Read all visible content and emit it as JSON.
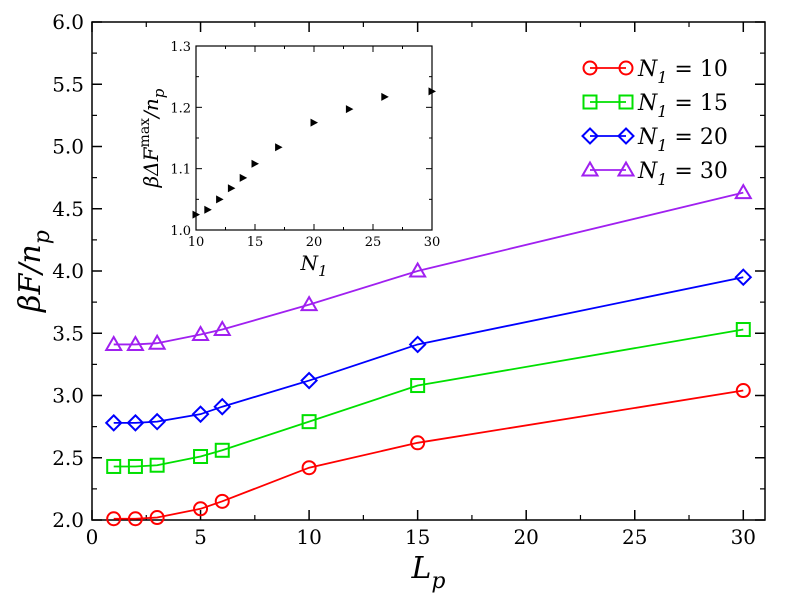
{
  "chart_data": [
    {
      "type": "line",
      "name": "main",
      "xlabel": {
        "base": "L",
        "sub": "p"
      },
      "ylabel": {
        "pre": "βF/n",
        "sub": "p"
      },
      "xlim": [
        0,
        31
      ],
      "ylim": [
        2.0,
        6.0
      ],
      "xticks": [
        0,
        5,
        10,
        15,
        20,
        25,
        30
      ],
      "xtick_labels": [
        "0",
        "5",
        "10",
        "15",
        "20",
        "25",
        "30"
      ],
      "yticks": [
        2.0,
        2.5,
        3.0,
        3.5,
        4.0,
        4.5,
        5.0,
        5.5,
        6.0
      ],
      "ytick_labels": [
        "2.0",
        "2.5",
        "3.0",
        "3.5",
        "4.0",
        "4.5",
        "5.0",
        "5.5",
        "6.0"
      ],
      "legend_position": "top-right",
      "series": [
        {
          "label": {
            "pre": "N",
            "sub": "1",
            "post": " = 10"
          },
          "color": "#ff0000",
          "marker": "circle",
          "x": [
            1,
            2,
            3,
            5,
            6,
            10,
            15,
            30
          ],
          "y": [
            2.01,
            2.01,
            2.02,
            2.09,
            2.15,
            2.42,
            2.62,
            3.04
          ]
        },
        {
          "label": {
            "pre": "N",
            "sub": "1",
            "post": " = 15"
          },
          "color": "#00e000",
          "marker": "square",
          "x": [
            1,
            2,
            3,
            5,
            6,
            10,
            15,
            30
          ],
          "y": [
            2.43,
            2.43,
            2.44,
            2.51,
            2.56,
            2.79,
            3.08,
            3.53
          ]
        },
        {
          "label": {
            "pre": "N",
            "sub": "1",
            "post": " = 20"
          },
          "color": "#0000ff",
          "marker": "diamond",
          "x": [
            1,
            2,
            3,
            5,
            6,
            10,
            15,
            30
          ],
          "y": [
            2.78,
            2.78,
            2.79,
            2.85,
            2.91,
            3.12,
            3.41,
            3.95
          ]
        },
        {
          "label": {
            "pre": "N",
            "sub": "1",
            "post": " = 30"
          },
          "color": "#a020f0",
          "marker": "triangle",
          "x": [
            1,
            2,
            3,
            5,
            6,
            10,
            15,
            30
          ],
          "y": [
            3.41,
            3.41,
            3.42,
            3.49,
            3.53,
            3.73,
            4.0,
            4.63
          ]
        }
      ]
    },
    {
      "type": "scatter",
      "name": "inset",
      "xlabel": {
        "base": "N",
        "sub": "1"
      },
      "ylabel": {
        "pre": "βΔF",
        "sup": "max",
        "mid": "/n",
        "sub": "p"
      },
      "xlim": [
        10,
        30
      ],
      "ylim": [
        1.0,
        1.3
      ],
      "xticks": [
        10,
        15,
        20,
        25,
        30
      ],
      "xtick_labels": [
        "10",
        "15",
        "20",
        "25",
        "30"
      ],
      "yticks": [
        1.0,
        1.1,
        1.2,
        1.3
      ],
      "ytick_labels": [
        "1.0",
        "1.1",
        "1.2",
        "1.3"
      ],
      "marker": "right-triangle",
      "color": "#000000",
      "x": [
        10,
        11,
        12,
        13,
        14,
        15,
        17,
        20,
        23,
        26,
        30
      ],
      "y": [
        1.025,
        1.033,
        1.05,
        1.068,
        1.085,
        1.108,
        1.135,
        1.175,
        1.197,
        1.217,
        1.226
      ]
    }
  ]
}
